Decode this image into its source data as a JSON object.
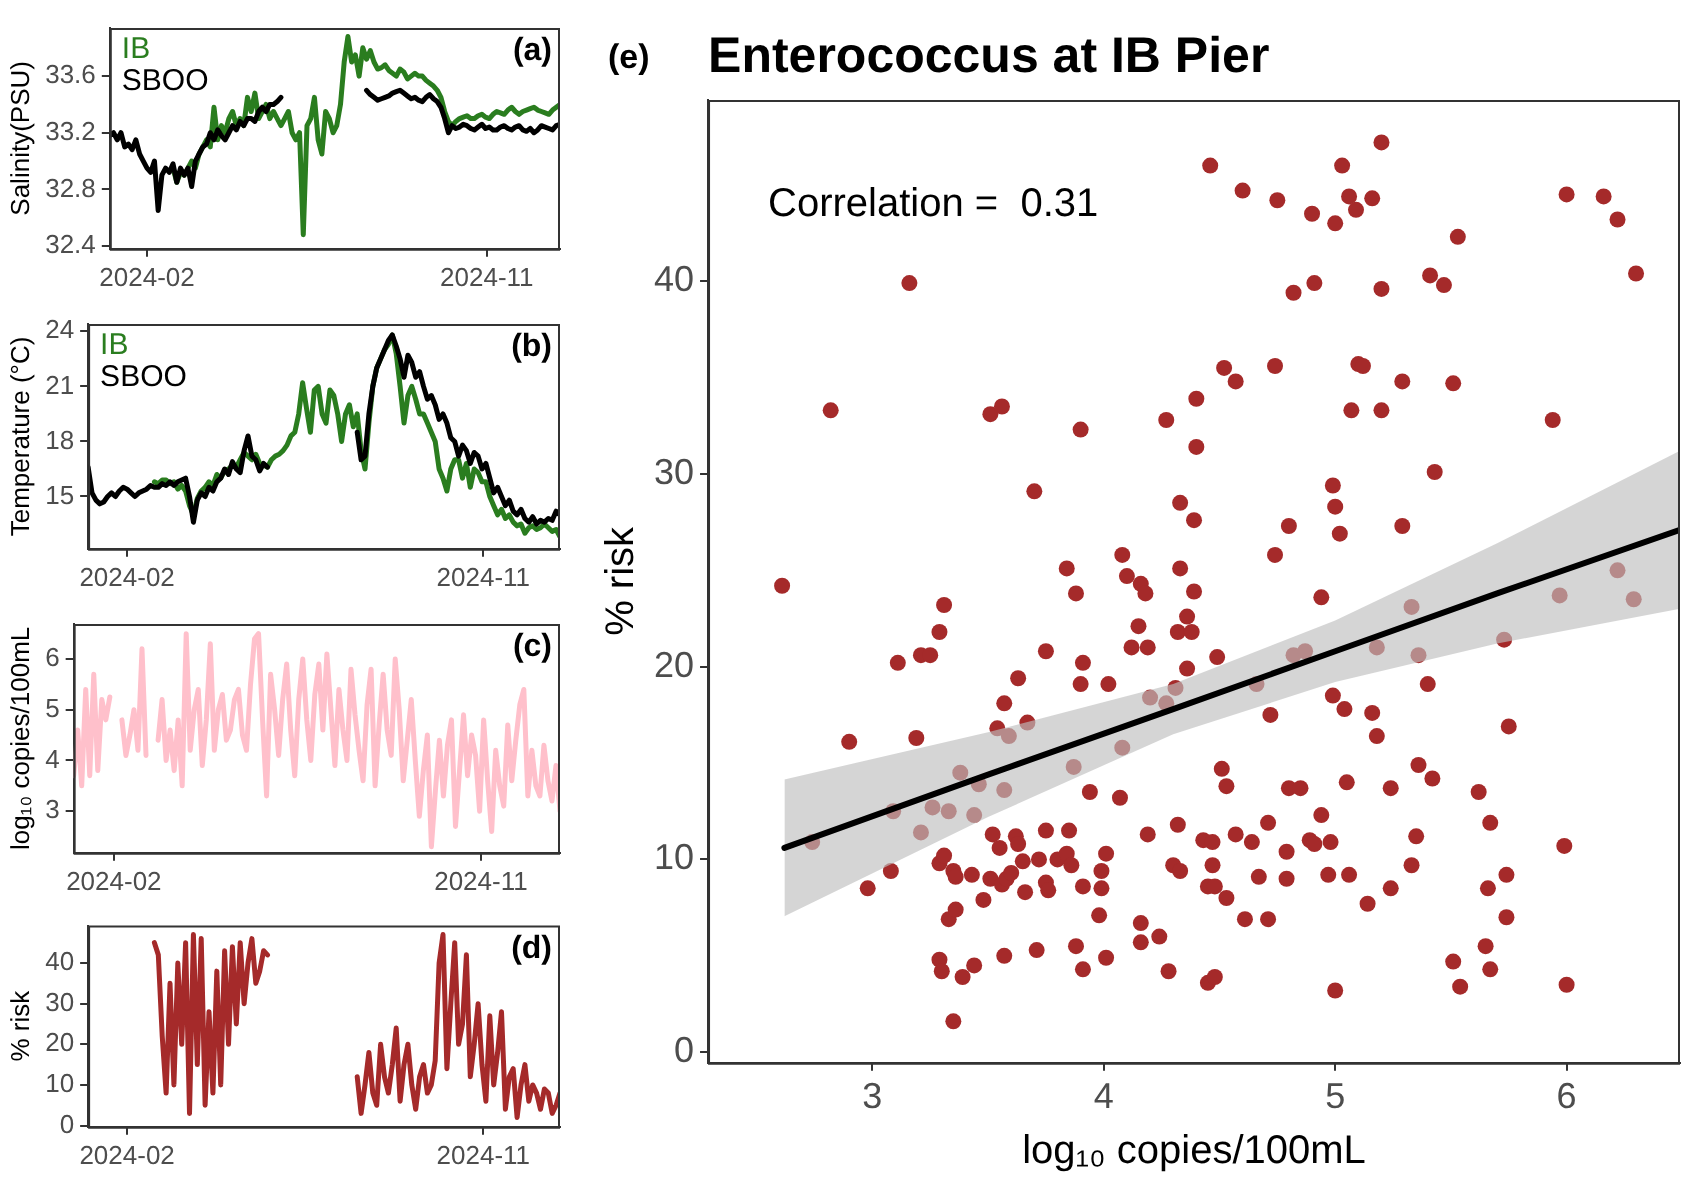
{
  "chart_data": [
    {
      "type": "line",
      "ylabel": "Salinity(PSU)",
      "annotations": [
        "(a)"
      ],
      "legend": "top left",
      "xlim": [
        "2024-01-02",
        "2024-12-30"
      ],
      "xticks": [
        "2024-02",
        "2024-11"
      ],
      "ylim": [
        32.38,
        33.94
      ],
      "yticks": [
        32.4,
        32.8,
        33.2,
        33.6
      ],
      "x": [
        "2024-01-02",
        "2024-01-05",
        "2024-01-08",
        "2024-01-11",
        "2024-01-14",
        "2024-01-17",
        "2024-01-20",
        "2024-01-23",
        "2024-01-26",
        "2024-01-29",
        "2024-02-01",
        "2024-02-04",
        "2024-02-07",
        "2024-02-10",
        "2024-02-13",
        "2024-02-16",
        "2024-02-19",
        "2024-02-22",
        "2024-02-25",
        "2024-02-28",
        "2024-03-02",
        "2024-03-05",
        "2024-03-08",
        "2024-03-11",
        "2024-03-14",
        "2024-03-17",
        "2024-03-20",
        "2024-03-23",
        "2024-03-26",
        "2024-03-29",
        "2024-04-01",
        "2024-04-04",
        "2024-04-07",
        "2024-04-10",
        "2024-04-13",
        "2024-04-16",
        "2024-04-19",
        "2024-04-22",
        "2024-04-25",
        "2024-04-28",
        "2024-05-01",
        "2024-05-04",
        "2024-05-07",
        "2024-05-10",
        "2024-05-13",
        "2024-05-16",
        "2024-05-19",
        "2024-05-22",
        "2024-05-25",
        "2024-05-28",
        "2024-05-31",
        "2024-06-03",
        "2024-06-06",
        "2024-06-09",
        "2024-06-12",
        "2024-06-15",
        "2024-06-18",
        "2024-06-21",
        "2024-06-24",
        "2024-06-27",
        "2024-06-30",
        "2024-07-03",
        "2024-07-06",
        "2024-07-09",
        "2024-07-12",
        "2024-07-15",
        "2024-07-18",
        "2024-07-21",
        "2024-07-24",
        "2024-07-27",
        "2024-07-30",
        "2024-08-02",
        "2024-08-05",
        "2024-08-08",
        "2024-08-11",
        "2024-08-14",
        "2024-08-17",
        "2024-08-20",
        "2024-08-23",
        "2024-08-26",
        "2024-08-29",
        "2024-09-01",
        "2024-09-04",
        "2024-09-07",
        "2024-09-10",
        "2024-09-13",
        "2024-09-16",
        "2024-09-19",
        "2024-09-22",
        "2024-09-25",
        "2024-09-28",
        "2024-10-01",
        "2024-10-04",
        "2024-10-07",
        "2024-10-10",
        "2024-10-13",
        "2024-10-16",
        "2024-10-19",
        "2024-10-22",
        "2024-10-25",
        "2024-10-28",
        "2024-10-31",
        "2024-11-03",
        "2024-11-06",
        "2024-11-09",
        "2024-11-12",
        "2024-11-15",
        "2024-11-18",
        "2024-11-21",
        "2024-11-24",
        "2024-11-27",
        "2024-11-30",
        "2024-12-03",
        "2024-12-06",
        "2024-12-09",
        "2024-12-12",
        "2024-12-15",
        "2024-12-18",
        "2024-12-21",
        "2024-12-24",
        "2024-12-27",
        "2024-12-30"
      ],
      "series": [
        {
          "name": "IB",
          "color": "#2a7d1f",
          "values": [
            null,
            null,
            null,
            null,
            null,
            null,
            null,
            null,
            null,
            null,
            null,
            null,
            null,
            null,
            null,
            null,
            null,
            32.95,
            32.85,
            32.92,
            32.9,
            32.95,
            33.0,
            32.95,
            33.05,
            33.1,
            33.15,
            33.1,
            33.38,
            33.15,
            33.25,
            33.2,
            33.3,
            33.35,
            33.25,
            33.3,
            33.25,
            33.45,
            33.35,
            33.48,
            33.3,
            33.35,
            33.4,
            33.3,
            33.35,
            33.3,
            33.25,
            33.3,
            33.35,
            33.2,
            33.15,
            33.2,
            32.48,
            33.25,
            33.3,
            33.45,
            33.15,
            33.05,
            33.35,
            33.3,
            33.2,
            33.25,
            33.4,
            33.7,
            33.88,
            33.7,
            33.75,
            33.6,
            33.8,
            33.72,
            33.78,
            33.7,
            33.65,
            33.66,
            33.68,
            33.64,
            33.62,
            33.6,
            33.65,
            33.63,
            33.58,
            33.6,
            33.62,
            33.6,
            33.6,
            33.57,
            33.55,
            33.53,
            33.5,
            33.45,
            33.35,
            33.28,
            33.25,
            33.28,
            33.3,
            33.31,
            33.32,
            33.3,
            33.3,
            33.32,
            33.33,
            33.31,
            33.3,
            33.33,
            33.35,
            33.34,
            33.33,
            33.36,
            33.38,
            33.35,
            33.33,
            33.35,
            33.36,
            33.37,
            33.38,
            33.36,
            33.35,
            33.34,
            33.33,
            33.36,
            33.38,
            33.4
          ]
        },
        {
          "name": "SBOO",
          "color": "#000000",
          "values": [
            33.18,
            33.2,
            33.15,
            33.2,
            33.1,
            33.12,
            33.08,
            33.15,
            33.05,
            33.0,
            32.95,
            32.92,
            33.0,
            32.65,
            32.9,
            32.95,
            32.92,
            32.98,
            32.85,
            32.95,
            32.9,
            32.95,
            32.82,
            33.0,
            33.05,
            33.1,
            33.12,
            33.2,
            33.15,
            33.22,
            33.18,
            33.15,
            33.2,
            33.25,
            33.22,
            33.28,
            33.25,
            33.3,
            33.3,
            33.28,
            33.35,
            33.38,
            33.35,
            33.4,
            33.4,
            33.42,
            33.45,
            null,
            null,
            null,
            null,
            null,
            null,
            null,
            null,
            null,
            null,
            null,
            null,
            null,
            null,
            null,
            null,
            null,
            null,
            null,
            null,
            null,
            null,
            33.5,
            33.47,
            33.45,
            33.43,
            33.44,
            33.45,
            33.46,
            33.48,
            33.49,
            33.5,
            33.48,
            33.46,
            33.44,
            33.45,
            33.43,
            33.42,
            33.45,
            33.47,
            33.44,
            33.42,
            33.38,
            33.3,
            33.2,
            33.25,
            33.23,
            33.24,
            33.26,
            33.25,
            33.23,
            33.22,
            33.24,
            33.26,
            33.23,
            33.24,
            33.22,
            33.22,
            33.24,
            33.25,
            33.23,
            33.22,
            33.24,
            33.25,
            33.22,
            33.21,
            33.23,
            33.2,
            33.22,
            33.25,
            33.24,
            33.23,
            33.22,
            33.25,
            33.26
          ]
        }
      ]
    },
    {
      "type": "line",
      "ylabel": "Temperature (°C)",
      "annotations": [
        "(b)"
      ],
      "legend": "top left",
      "xlim": [
        "2024-01-02",
        "2024-12-30"
      ],
      "xticks": [
        "2024-02",
        "2024-11"
      ],
      "ylim": [
        12.15,
        24.4
      ],
      "yticks": [
        15,
        18,
        21,
        24
      ],
      "x": [
        "2024-01-02",
        "2024-01-05",
        "2024-01-08",
        "2024-01-11",
        "2024-01-14",
        "2024-01-17",
        "2024-01-20",
        "2024-01-23",
        "2024-01-26",
        "2024-01-29",
        "2024-02-01",
        "2024-02-04",
        "2024-02-07",
        "2024-02-10",
        "2024-02-13",
        "2024-02-16",
        "2024-02-19",
        "2024-02-22",
        "2024-02-25",
        "2024-02-28",
        "2024-03-02",
        "2024-03-05",
        "2024-03-08",
        "2024-03-11",
        "2024-03-14",
        "2024-03-17",
        "2024-03-20",
        "2024-03-23",
        "2024-03-26",
        "2024-03-29",
        "2024-04-01",
        "2024-04-04",
        "2024-04-07",
        "2024-04-10",
        "2024-04-13",
        "2024-04-16",
        "2024-04-19",
        "2024-04-22",
        "2024-04-25",
        "2024-04-28",
        "2024-05-01",
        "2024-05-04",
        "2024-05-07",
        "2024-05-10",
        "2024-05-13",
        "2024-05-16",
        "2024-05-19",
        "2024-05-22",
        "2024-05-25",
        "2024-05-28",
        "2024-05-31",
        "2024-06-03",
        "2024-06-06",
        "2024-06-09",
        "2024-06-12",
        "2024-06-15",
        "2024-06-18",
        "2024-06-21",
        "2024-06-24",
        "2024-06-27",
        "2024-06-30",
        "2024-07-03",
        "2024-07-06",
        "2024-07-09",
        "2024-07-12",
        "2024-07-15",
        "2024-07-18",
        "2024-07-21",
        "2024-07-24",
        "2024-07-27",
        "2024-07-30",
        "2024-08-02",
        "2024-08-05",
        "2024-08-08",
        "2024-08-11",
        "2024-08-14",
        "2024-08-17",
        "2024-08-20",
        "2024-08-23",
        "2024-08-26",
        "2024-08-29",
        "2024-09-01",
        "2024-09-04",
        "2024-09-07",
        "2024-09-10",
        "2024-09-13",
        "2024-09-16",
        "2024-09-19",
        "2024-09-22",
        "2024-09-25",
        "2024-09-28",
        "2024-10-01",
        "2024-10-04",
        "2024-10-07",
        "2024-10-10",
        "2024-10-13",
        "2024-10-16",
        "2024-10-19",
        "2024-10-22",
        "2024-10-25",
        "2024-10-28",
        "2024-10-31",
        "2024-11-03",
        "2024-11-06",
        "2024-11-09",
        "2024-11-12",
        "2024-11-15",
        "2024-11-18",
        "2024-11-21",
        "2024-11-24",
        "2024-11-27",
        "2024-11-30",
        "2024-12-03",
        "2024-12-06",
        "2024-12-09",
        "2024-12-12",
        "2024-12-15",
        "2024-12-18",
        "2024-12-21",
        "2024-12-24",
        "2024-12-27",
        "2024-12-30"
      ],
      "series": [
        {
          "name": "IB",
          "color": "#2a7d1f",
          "values": [
            null,
            null,
            null,
            null,
            null,
            null,
            null,
            null,
            null,
            null,
            null,
            null,
            null,
            null,
            null,
            null,
            null,
            15.8,
            15.7,
            15.9,
            15.9,
            15.7,
            15.8,
            15.4,
            15.6,
            15.3,
            14.5,
            14.0,
            14.9,
            15.3,
            15.5,
            15.8,
            15.6,
            16.2,
            16.0,
            16.4,
            16.5,
            16.7,
            16.6,
            17.0,
            17.4,
            17.2,
            17.0,
            17.3,
            16.8,
            16.7,
            16.6,
            17.0,
            17.2,
            17.3,
            17.5,
            17.8,
            18.3,
            18.5,
            19.5,
            21.2,
            19.8,
            18.5,
            20.8,
            21.0,
            19.5,
            19.0,
            20.8,
            20.5,
            19.5,
            18.0,
            19.5,
            20.0,
            18.8,
            19.5,
            17.5,
            16.5,
            19.0,
            21.0,
            22.0,
            22.5,
            23.0,
            23.3,
            23.8,
            22.8,
            21.0,
            19.0,
            20.5,
            21.0,
            20.3,
            19.5,
            19.5,
            19.0,
            18.5,
            18.0,
            16.5,
            16.0,
            15.3,
            16.5,
            17.0,
            17.0,
            16.0,
            16.8,
            15.5,
            16.5,
            16.3,
            15.8,
            15.8,
            15.0,
            14.5,
            14.0,
            14.3,
            13.8,
            14.0,
            13.6,
            13.4,
            13.5,
            13.0,
            13.3,
            13.4,
            13.2,
            13.3,
            13.5,
            13.3,
            13.1,
            13.2,
            12.8
          ]
        },
        {
          "name": "SBOO",
          "color": "#000000",
          "values": [
            16.6,
            15.2,
            14.8,
            14.6,
            14.7,
            15.0,
            15.2,
            15.0,
            15.3,
            15.5,
            15.4,
            15.2,
            15.0,
            15.2,
            15.3,
            15.4,
            15.6,
            15.5,
            15.5,
            15.7,
            15.6,
            15.8,
            15.6,
            15.8,
            15.9,
            16.0,
            15.0,
            13.6,
            14.8,
            15.2,
            15.0,
            15.5,
            15.3,
            15.8,
            16.0,
            16.5,
            16.2,
            16.9,
            16.5,
            16.3,
            17.5,
            18.3,
            17.2,
            17.0,
            16.4,
            16.8,
            16.6,
            null,
            null,
            null,
            null,
            null,
            null,
            null,
            null,
            null,
            null,
            null,
            null,
            null,
            null,
            null,
            null,
            null,
            null,
            null,
            null,
            null,
            null,
            18.5,
            17.0,
            17.2,
            19.5,
            21.0,
            22.0,
            22.5,
            23.0,
            23.5,
            23.8,
            23.2,
            22.5,
            21.5,
            22.7,
            22.3,
            21.5,
            21.8,
            21.0,
            20.3,
            20.5,
            20.0,
            19.2,
            19.5,
            19.0,
            18.2,
            18.0,
            17.2,
            17.8,
            17.5,
            16.8,
            17.4,
            17.2,
            16.5,
            16.8,
            16.0,
            15.2,
            15.5,
            15.0,
            14.5,
            14.8,
            14.2,
            14.0,
            14.3,
            13.8,
            13.6,
            13.9,
            13.5,
            13.7,
            13.6,
            13.8,
            13.7,
            14.2,
            14.0
          ]
        }
      ]
    },
    {
      "type": "line",
      "ylabel": "log₁₀ copies/100mL",
      "annotations": [
        "(c)"
      ],
      "xlim": [
        "2024-01-02",
        "2024-12-30"
      ],
      "xticks": [
        "2024-02",
        "2024-11"
      ],
      "ylim": [
        2.18,
        6.69
      ],
      "yticks": [
        3,
        4,
        5,
        6
      ],
      "x": [
        "2024-01-02",
        "2024-01-05",
        "2024-01-08",
        "2024-01-11",
        "2024-01-14",
        "2024-01-17",
        "2024-01-20",
        "2024-01-23",
        "2024-01-26",
        "2024-01-29",
        "2024-02-01",
        "2024-02-04",
        "2024-02-07",
        "2024-02-10",
        "2024-02-13",
        "2024-02-16",
        "2024-02-19",
        "2024-02-22",
        "2024-02-25",
        "2024-02-28",
        "2024-03-02",
        "2024-03-05",
        "2024-03-08",
        "2024-03-11",
        "2024-03-14",
        "2024-03-17",
        "2024-03-20",
        "2024-03-23",
        "2024-03-26",
        "2024-03-29",
        "2024-04-01",
        "2024-04-04",
        "2024-04-07",
        "2024-04-10",
        "2024-04-13",
        "2024-04-16",
        "2024-04-19",
        "2024-04-22",
        "2024-04-25",
        "2024-04-28",
        "2024-05-01",
        "2024-05-04",
        "2024-05-07",
        "2024-05-10",
        "2024-05-13",
        "2024-05-16",
        "2024-05-19",
        "2024-05-22",
        "2024-05-25",
        "2024-05-28",
        "2024-05-31",
        "2024-06-03",
        "2024-06-06",
        "2024-06-09",
        "2024-06-12",
        "2024-06-15",
        "2024-06-18",
        "2024-06-21",
        "2024-06-24",
        "2024-06-27",
        "2024-06-30",
        "2024-07-03",
        "2024-07-06",
        "2024-07-09",
        "2024-07-12",
        "2024-07-15",
        "2024-07-18",
        "2024-07-21",
        "2024-07-24",
        "2024-07-27",
        "2024-07-30",
        "2024-08-02",
        "2024-08-05",
        "2024-08-08",
        "2024-08-11",
        "2024-08-14",
        "2024-08-17",
        "2024-08-20",
        "2024-08-23",
        "2024-08-26",
        "2024-08-29",
        "2024-09-01",
        "2024-09-04",
        "2024-09-07",
        "2024-09-10",
        "2024-09-13",
        "2024-09-16",
        "2024-09-19",
        "2024-09-22",
        "2024-09-25",
        "2024-09-28",
        "2024-10-01",
        "2024-10-04",
        "2024-10-07",
        "2024-10-10",
        "2024-10-13",
        "2024-10-16",
        "2024-10-19",
        "2024-10-22",
        "2024-10-25",
        "2024-10-28",
        "2024-10-31",
        "2024-11-03",
        "2024-11-06",
        "2024-11-09",
        "2024-11-12",
        "2024-11-15",
        "2024-11-18",
        "2024-11-21",
        "2024-11-24",
        "2024-11-27",
        "2024-11-30",
        "2024-12-03",
        "2024-12-06",
        "2024-12-09",
        "2024-12-12",
        "2024-12-15",
        "2024-12-18",
        "2024-12-21",
        "2024-12-24",
        "2024-12-27",
        "2024-12-30"
      ],
      "series": [
        {
          "color": "#ffc0cb",
          "values": [
            3.7,
            4.6,
            3.5,
            5.4,
            3.7,
            5.7,
            3.8,
            5.2,
            4.8,
            5.25,
            null,
            null,
            4.8,
            4.1,
            4.5,
            5.0,
            4.2,
            6.2,
            4.1,
            null,
            null,
            4.4,
            5.2,
            4.0,
            4.6,
            3.8,
            4.8,
            3.5,
            6.5,
            4.2,
            5.0,
            5.4,
            3.9,
            4.8,
            6.3,
            4.2,
            5.0,
            5.3,
            4.4,
            4.6,
            5.2,
            5.4,
            4.5,
            4.2,
            5.5,
            6.4,
            6.5,
            4.8,
            3.3,
            5.7,
            5.0,
            4.1,
            5.2,
            5.9,
            4.6,
            3.7,
            5.2,
            6.0,
            4.8,
            4.0,
            5.3,
            5.9,
            4.6,
            6.1,
            5.0,
            3.9,
            5.4,
            4.6,
            4.0,
            5.8,
            4.9,
            4.2,
            3.6,
            5.1,
            5.8,
            3.5,
            4.7,
            5.7,
            4.6,
            4.1,
            6.0,
            5.0,
            3.6,
            4.4,
            5.2,
            4.0,
            2.9,
            3.8,
            4.5,
            2.3,
            3.4,
            4.4,
            3.3,
            4.3,
            4.8,
            2.7,
            3.8,
            4.9,
            3.7,
            4.5,
            4.1,
            3.0,
            4.8,
            3.6,
            2.6,
            4.2,
            3.5,
            3.1,
            4.7,
            3.6,
            4.4,
            5.1,
            5.4,
            3.3,
            4.2,
            3.5,
            3.3,
            4.3,
            3.6,
            3.2,
            3.9,
            3.0
          ]
        }
      ]
    },
    {
      "type": "line",
      "ylabel": "% risk",
      "annotations": [
        "(d)"
      ],
      "xlim": [
        "2024-01-02",
        "2024-12-30"
      ],
      "xticks": [
        "2024-02",
        "2024-11"
      ],
      "ylim": [
        -0.3,
        49.2
      ],
      "yticks": [
        0,
        10,
        20,
        30,
        40
      ],
      "x": [
        "2024-02-22",
        "2024-02-25",
        "2024-02-28",
        "2024-03-02",
        "2024-03-05",
        "2024-03-08",
        "2024-03-11",
        "2024-03-14",
        "2024-03-17",
        "2024-03-20",
        "2024-03-23",
        "2024-03-26",
        "2024-03-29",
        "2024-04-01",
        "2024-04-04",
        "2024-04-07",
        "2024-04-10",
        "2024-04-13",
        "2024-04-16",
        "2024-04-19",
        "2024-04-22",
        "2024-04-25",
        "2024-04-28",
        "2024-05-01",
        "2024-05-04",
        "2024-05-07",
        "2024-05-10",
        "2024-05-13",
        "2024-05-16",
        "2024-05-19",
        "2024-05-22",
        "2024-05-25",
        "2024-05-28",
        "2024-05-31",
        "2024-06-03",
        "2024-06-06",
        "2024-06-09",
        "2024-06-12",
        "2024-06-15",
        "2024-06-18",
        "2024-06-21",
        "2024-06-24",
        "2024-06-27",
        "2024-06-30",
        "2024-07-03",
        "2024-07-06",
        "2024-07-09",
        "2024-07-12",
        "2024-07-15",
        "2024-07-18",
        "2024-07-21",
        "2024-07-24",
        "2024-07-27",
        "2024-07-30",
        "2024-08-02",
        "2024-08-05",
        "2024-08-08",
        "2024-08-11",
        "2024-08-14",
        "2024-08-17",
        "2024-08-20",
        "2024-08-23",
        "2024-08-26",
        "2024-08-29",
        "2024-09-01",
        "2024-09-04",
        "2024-09-07",
        "2024-09-10",
        "2024-09-13",
        "2024-09-16",
        "2024-09-19",
        "2024-09-22",
        "2024-09-25",
        "2024-09-28",
        "2024-10-01",
        "2024-10-04",
        "2024-10-07",
        "2024-10-10",
        "2024-10-13",
        "2024-10-16",
        "2024-10-19",
        "2024-10-22",
        "2024-10-25",
        "2024-10-28",
        "2024-10-31",
        "2024-11-03",
        "2024-11-06",
        "2024-11-09",
        "2024-11-12",
        "2024-11-15",
        "2024-11-18",
        "2024-11-21",
        "2024-11-24",
        "2024-11-27",
        "2024-11-30",
        "2024-12-03",
        "2024-12-06",
        "2024-12-09",
        "2024-12-12",
        "2024-12-15",
        "2024-12-18",
        "2024-12-21",
        "2024-12-24",
        "2024-12-27",
        "2024-12-30"
      ],
      "series": [
        {
          "color": "#a52a2a",
          "values": [
            45,
            42,
            22,
            8,
            35,
            10,
            40,
            20,
            45,
            3,
            47,
            15,
            46,
            5,
            28,
            8,
            38,
            10,
            43,
            20,
            44,
            25,
            45,
            30,
            40,
            46,
            35,
            38,
            43,
            42,
            null,
            null,
            null,
            null,
            null,
            null,
            null,
            null,
            null,
            null,
            null,
            null,
            null,
            null,
            null,
            null,
            null,
            null,
            null,
            null,
            null,
            null,
            12,
            3,
            10,
            18,
            8,
            5,
            20,
            12,
            8,
            15,
            24,
            6,
            15,
            20,
            10,
            4,
            12,
            15,
            8,
            10,
            16,
            40,
            47,
            14,
            30,
            45,
            20,
            25,
            42,
            12,
            20,
            30,
            15,
            6,
            27,
            10,
            18,
            28,
            4,
            12,
            14,
            2,
            10,
            15,
            6,
            10,
            8,
            4,
            9,
            8,
            3,
            5,
            8
          ]
        }
      ]
    },
    {
      "type": "scatter",
      "title": "Enterococcus at IB Pier",
      "xlabel": "log₁₀ copies/100mL",
      "ylabel": "% risk",
      "annotations": [
        "(e)",
        "Correlation =  0.31"
      ],
      "xlim": [
        2.29,
        6.49
      ],
      "xticks": [
        3,
        4,
        5,
        6
      ],
      "ylim": [
        -0.55,
        49.4
      ],
      "yticks": [
        0,
        10,
        20,
        30,
        40
      ],
      "series": [
        {
          "color": "#a52a2a",
          "marker": "circle",
          "x": [
            4.46,
            4.6,
            4.75,
            4.9,
            5.0,
            5.03,
            5.06,
            5.09,
            5.16,
            5.2,
            5.53,
            6.0,
            6.16,
            6.22,
            6.3,
            3.16,
            4.82,
            4.91,
            5.2,
            5.41,
            5.47,
            4.52,
            4.57,
            4.74,
            5.1,
            5.12,
            5.29,
            5.51,
            2.82,
            3.51,
            3.56,
            3.9,
            4.27,
            4.4,
            4.4,
            5.07,
            5.2,
            5.94,
            3.7,
            5.43,
            4.99,
            5.0,
            4.33,
            4.39,
            4.8,
            5.02,
            5.29,
            4.74,
            4.08,
            3.84,
            4.1,
            4.16,
            4.33,
            2.61,
            3.88,
            4.18,
            4.39,
            4.94,
            3.31,
            5.97,
            6.22,
            6.29,
            5.33,
            3.29,
            3.21,
            3.25,
            3.11,
            3.75,
            3.91,
            3.9,
            4.02,
            3.63,
            3.57,
            3.54,
            3.59,
            3.67,
            2.9,
            3.19,
            4.12,
            4.19,
            4.15,
            4.32,
            4.38,
            4.36,
            4.36,
            4.49,
            4.2,
            4.27,
            4.31,
            4.66,
            4.82,
            4.87,
            4.72,
            4.99,
            5.04,
            5.18,
            5.36,
            5.4,
            5.16,
            5.18,
            5.73,
            5.75,
            3.87,
            4.08,
            4.51,
            4.53,
            3.94,
            4.07,
            4.8,
            4.85,
            5.05,
            5.24,
            5.36,
            5.42,
            5.62,
            3.38,
            3.46,
            3.57,
            3.09,
            3.26,
            3.33,
            3.21,
            3.44,
            2.74,
            3.52,
            3.55,
            3.62,
            3.63,
            3.75,
            3.85,
            4.32,
            4.19,
            4.43,
            4.47,
            4.57,
            4.64,
            4.71,
            4.94,
            4.89,
            4.91,
            4.98,
            5.35,
            5.67,
            5.99,
            2.98,
            3.08,
            3.29,
            3.31,
            3.35,
            3.36,
            3.43,
            3.48,
            3.51,
            3.56,
            3.58,
            3.6,
            3.65,
            3.66,
            3.72,
            3.75,
            3.76,
            3.8,
            3.84,
            3.86,
            3.91,
            3.99,
            3.99,
            4.01,
            3.98,
            4.3,
            4.33,
            4.47,
            4.45,
            4.48,
            4.53,
            4.67,
            4.79,
            4.79,
            4.97,
            5.06,
            5.24,
            5.33,
            5.14,
            5.66,
            5.74,
            5.74,
            4.61,
            4.71,
            3.33,
            3.36,
            4.16,
            4.24,
            4.16,
            3.29,
            3.3,
            3.44,
            3.39,
            3.57,
            3.71,
            3.88,
            3.91,
            4.01,
            4.28,
            4.45,
            4.48,
            5.0,
            5.51,
            5.54,
            5.65,
            5.67,
            6.0,
            3.35
          ],
          "values": [
            46.0,
            44.7,
            44.2,
            43.5,
            43.0,
            46.0,
            44.4,
            43.7,
            44.3,
            47.2,
            42.3,
            44.5,
            44.4,
            43.2,
            40.4,
            39.9,
            39.4,
            39.9,
            39.6,
            40.3,
            39.8,
            35.5,
            34.8,
            35.6,
            35.7,
            35.6,
            34.8,
            34.7,
            33.3,
            33.1,
            33.5,
            32.3,
            32.8,
            33.9,
            31.4,
            33.3,
            33.3,
            32.8,
            29.1,
            30.1,
            29.4,
            28.3,
            28.5,
            27.6,
            27.3,
            26.9,
            27.3,
            25.8,
            25.8,
            25.1,
            24.7,
            24.3,
            25.1,
            24.2,
            23.8,
            23.8,
            23.9,
            23.6,
            23.2,
            23.7,
            25.0,
            23.5,
            23.1,
            21.8,
            20.6,
            20.6,
            20.2,
            20.8,
            20.2,
            19.1,
            19.1,
            19.4,
            18.1,
            16.8,
            16.4,
            17.1,
            16.1,
            16.3,
            21.0,
            21.0,
            22.1,
            21.8,
            21.8,
            22.6,
            19.9,
            20.5,
            18.4,
            18.1,
            18.9,
            19.1,
            20.6,
            20.8,
            17.5,
            18.5,
            17.8,
            21.0,
            20.6,
            19.1,
            17.6,
            16.4,
            21.4,
            16.9,
            14.8,
            15.8,
            14.7,
            13.8,
            13.5,
            13.2,
            13.7,
            13.7,
            14.0,
            13.7,
            14.9,
            14.2,
            13.5,
            14.5,
            13.9,
            13.6,
            12.5,
            12.7,
            12.5,
            11.4,
            12.3,
            10.9,
            11.3,
            10.6,
            11.2,
            10.8,
            11.5,
            11.5,
            11.8,
            11.3,
            11.0,
            10.9,
            11.3,
            10.9,
            11.9,
            12.3,
            11.0,
            10.8,
            10.9,
            11.2,
            11.9,
            10.7,
            8.5,
            9.4,
            9.8,
            10.2,
            9.4,
            9.1,
            9.2,
            7.9,
            9.0,
            8.7,
            9.0,
            9.3,
            9.9,
            8.3,
            10.0,
            8.8,
            8.4,
            10.0,
            10.3,
            9.7,
            8.6,
            8.5,
            9.4,
            10.3,
            7.1,
            9.7,
            9.4,
            9.7,
            8.6,
            8.6,
            8.0,
            9.1,
            10.4,
            9.0,
            9.2,
            9.2,
            8.5,
            9.7,
            7.7,
            8.5,
            9.2,
            7.0,
            6.9,
            6.9,
            6.9,
            7.4,
            6.7,
            6.0,
            5.7,
            4.8,
            4.2,
            4.5,
            3.9,
            5.0,
            5.3,
            5.5,
            4.3,
            4.9,
            4.2,
            3.6,
            3.9,
            3.2,
            4.7,
            3.4,
            5.5,
            4.3,
            3.5,
            1.6
          ]
        },
        {
          "type": "line",
          "color": "#000000",
          "x": [
            2.62,
            3.5,
            4.3,
            5.0,
            5.7,
            6.49
          ],
          "values": [
            10.6,
            14.4,
            17.8,
            20.8,
            23.8,
            27.1
          ],
          "lower": [
            7.05,
            12.2,
            16.5,
            19.2,
            21.2,
            23.0
          ],
          "upper": [
            14.15,
            16.6,
            19.1,
            22.4,
            26.4,
            31.2
          ]
        }
      ]
    }
  ]
}
